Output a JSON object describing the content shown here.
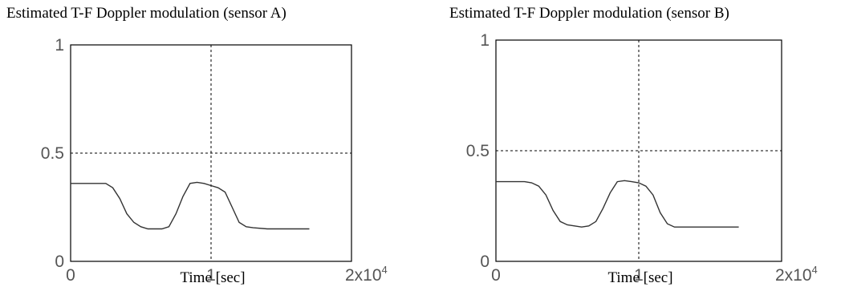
{
  "chart_data": [
    {
      "type": "line",
      "title": "Estimated T-F Doppler modulation (sensor A)",
      "xlabel": "Time [sec]",
      "ylabel": "",
      "xlim": [
        0,
        2
      ],
      "ylim": [
        0,
        1
      ],
      "x_ticks": [
        "0",
        "1",
        "2x10"
      ],
      "x_tick_exponent": "4",
      "y_ticks": [
        "0",
        "0.5",
        "1"
      ],
      "grid": false,
      "reference_lines": {
        "x": 1,
        "y": 0.5
      },
      "series": [
        {
          "values": [
            [
              0,
              0.36
            ],
            [
              0.1,
              0.36
            ],
            [
              0.2,
              0.36
            ],
            [
              0.25,
              0.36
            ],
            [
              0.3,
              0.34
            ],
            [
              0.35,
              0.29
            ],
            [
              0.4,
              0.22
            ],
            [
              0.45,
              0.18
            ],
            [
              0.5,
              0.16
            ],
            [
              0.55,
              0.15
            ],
            [
              0.6,
              0.15
            ],
            [
              0.65,
              0.15
            ],
            [
              0.7,
              0.16
            ],
            [
              0.75,
              0.22
            ],
            [
              0.8,
              0.3
            ],
            [
              0.85,
              0.36
            ],
            [
              0.9,
              0.365
            ],
            [
              0.95,
              0.36
            ],
            [
              1.0,
              0.35
            ],
            [
              1.05,
              0.34
            ],
            [
              1.1,
              0.32
            ],
            [
              1.15,
              0.25
            ],
            [
              1.2,
              0.18
            ],
            [
              1.25,
              0.16
            ],
            [
              1.3,
              0.155
            ],
            [
              1.4,
              0.15
            ],
            [
              1.5,
              0.15
            ],
            [
              1.6,
              0.15
            ],
            [
              1.7,
              0.15
            ]
          ]
        }
      ]
    },
    {
      "type": "line",
      "title": "Estimated T-F Doppler modulation (sensor B)",
      "xlabel": "Time [sec]",
      "ylabel": "",
      "xlim": [
        0,
        2
      ],
      "ylim": [
        0,
        1
      ],
      "x_ticks": [
        "0",
        "1",
        "2x10"
      ],
      "x_tick_exponent": "4",
      "y_ticks": [
        "0",
        "0.5",
        "1"
      ],
      "grid": false,
      "reference_lines": {
        "x": 1,
        "y": 0.5
      },
      "series": [
        {
          "values": [
            [
              0,
              0.36
            ],
            [
              0.1,
              0.36
            ],
            [
              0.2,
              0.36
            ],
            [
              0.25,
              0.355
            ],
            [
              0.3,
              0.34
            ],
            [
              0.35,
              0.3
            ],
            [
              0.4,
              0.23
            ],
            [
              0.45,
              0.18
            ],
            [
              0.5,
              0.165
            ],
            [
              0.55,
              0.16
            ],
            [
              0.6,
              0.155
            ],
            [
              0.65,
              0.16
            ],
            [
              0.7,
              0.18
            ],
            [
              0.75,
              0.24
            ],
            [
              0.8,
              0.31
            ],
            [
              0.85,
              0.36
            ],
            [
              0.9,
              0.365
            ],
            [
              0.95,
              0.36
            ],
            [
              1.0,
              0.355
            ],
            [
              1.05,
              0.34
            ],
            [
              1.1,
              0.3
            ],
            [
              1.15,
              0.22
            ],
            [
              1.2,
              0.17
            ],
            [
              1.25,
              0.155
            ],
            [
              1.3,
              0.155
            ],
            [
              1.4,
              0.155
            ],
            [
              1.5,
              0.155
            ],
            [
              1.6,
              0.155
            ],
            [
              1.7,
              0.155
            ]
          ]
        }
      ]
    }
  ]
}
